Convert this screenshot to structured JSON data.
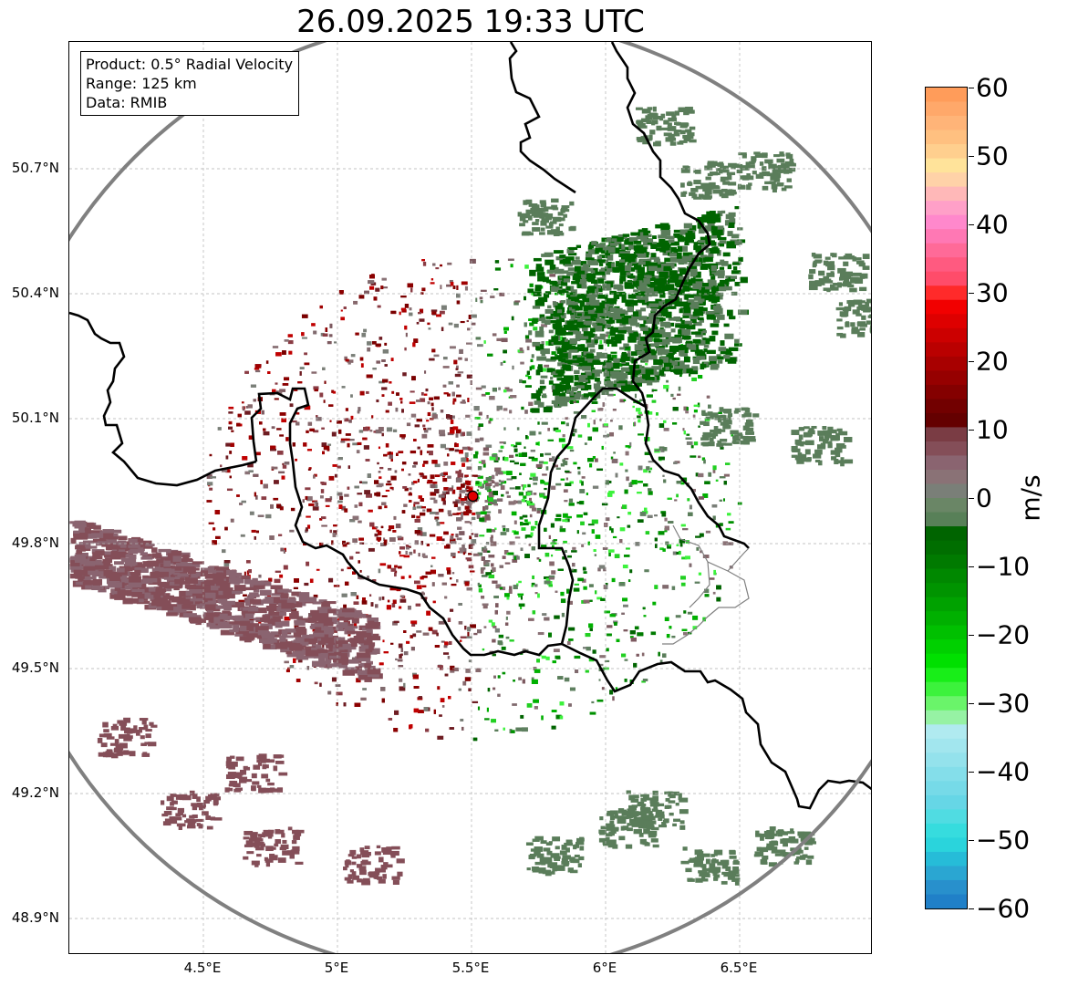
{
  "title": "26.09.2025 19:33 UTC",
  "info_box": {
    "product": "Product: 0.5° Radial Velocity",
    "range": "Range: 125 km",
    "data": "Data: RMIB"
  },
  "map": {
    "lon_range": [
      4.0,
      7.0
    ],
    "lat_range": [
      48.8,
      51.0
    ],
    "lat_ticks": [
      "50.7°N",
      "50.4°N",
      "50.1°N",
      "49.8°N",
      "49.5°N",
      "49.2°N",
      "48.9°N"
    ],
    "lon_ticks": [
      "4.5°E",
      "5°E",
      "5.5°E",
      "6°E",
      "6.5°E"
    ],
    "radar_site": {
      "lon": 5.505,
      "lat": 49.914
    },
    "range_ring_km": 125,
    "colors": {
      "range_ring": "#808080",
      "grid": "#b0b0b0",
      "borders": "#000000",
      "radar_marker": "#e00000"
    }
  },
  "colorbar": {
    "unit": "m/s",
    "min": -60,
    "max": 60,
    "ticks": [
      "60",
      "50",
      "40",
      "30",
      "20",
      "10",
      "0",
      "−10",
      "−20",
      "−30",
      "−40",
      "−50",
      "−60"
    ],
    "ticks_values": [
      60,
      50,
      40,
      30,
      20,
      10,
      0,
      -10,
      -20,
      -30,
      -40,
      -50,
      -60
    ],
    "colors_top_to_bottom": [
      "#ff9c5a",
      "#ffa86a",
      "#ffb478",
      "#ffc080",
      "#ffcf8e",
      "#ffe39a",
      "#ffd2a8",
      "#ffb8b8",
      "#ffa0c8",
      "#ff88cc",
      "#ff78b4",
      "#ff6a98",
      "#ff5a80",
      "#ff4c6a",
      "#ff2a2a",
      "#f20000",
      "#de0000",
      "#cc0000",
      "#ba0000",
      "#a80000",
      "#960000",
      "#840000",
      "#720000",
      "#640000",
      "#7a3c44",
      "#844e58",
      "#8a6470",
      "#8a7276",
      "#7a7f78",
      "#6a8666",
      "#588058",
      "#006400",
      "#006e00",
      "#007a00",
      "#008800",
      "#009400",
      "#00a200",
      "#00b000",
      "#00c000",
      "#00d000",
      "#00e000",
      "#18ee18",
      "#3cf23c",
      "#6af46a",
      "#96f2a4",
      "#b0eaf0",
      "#a2e6ee",
      "#94e2ec",
      "#84deea",
      "#76dae8",
      "#66d6e6",
      "#50dce2",
      "#36dcde",
      "#2ad4dc",
      "#26bcd8",
      "#2aa6d2",
      "#2890cc",
      "#2080c8"
    ]
  }
}
